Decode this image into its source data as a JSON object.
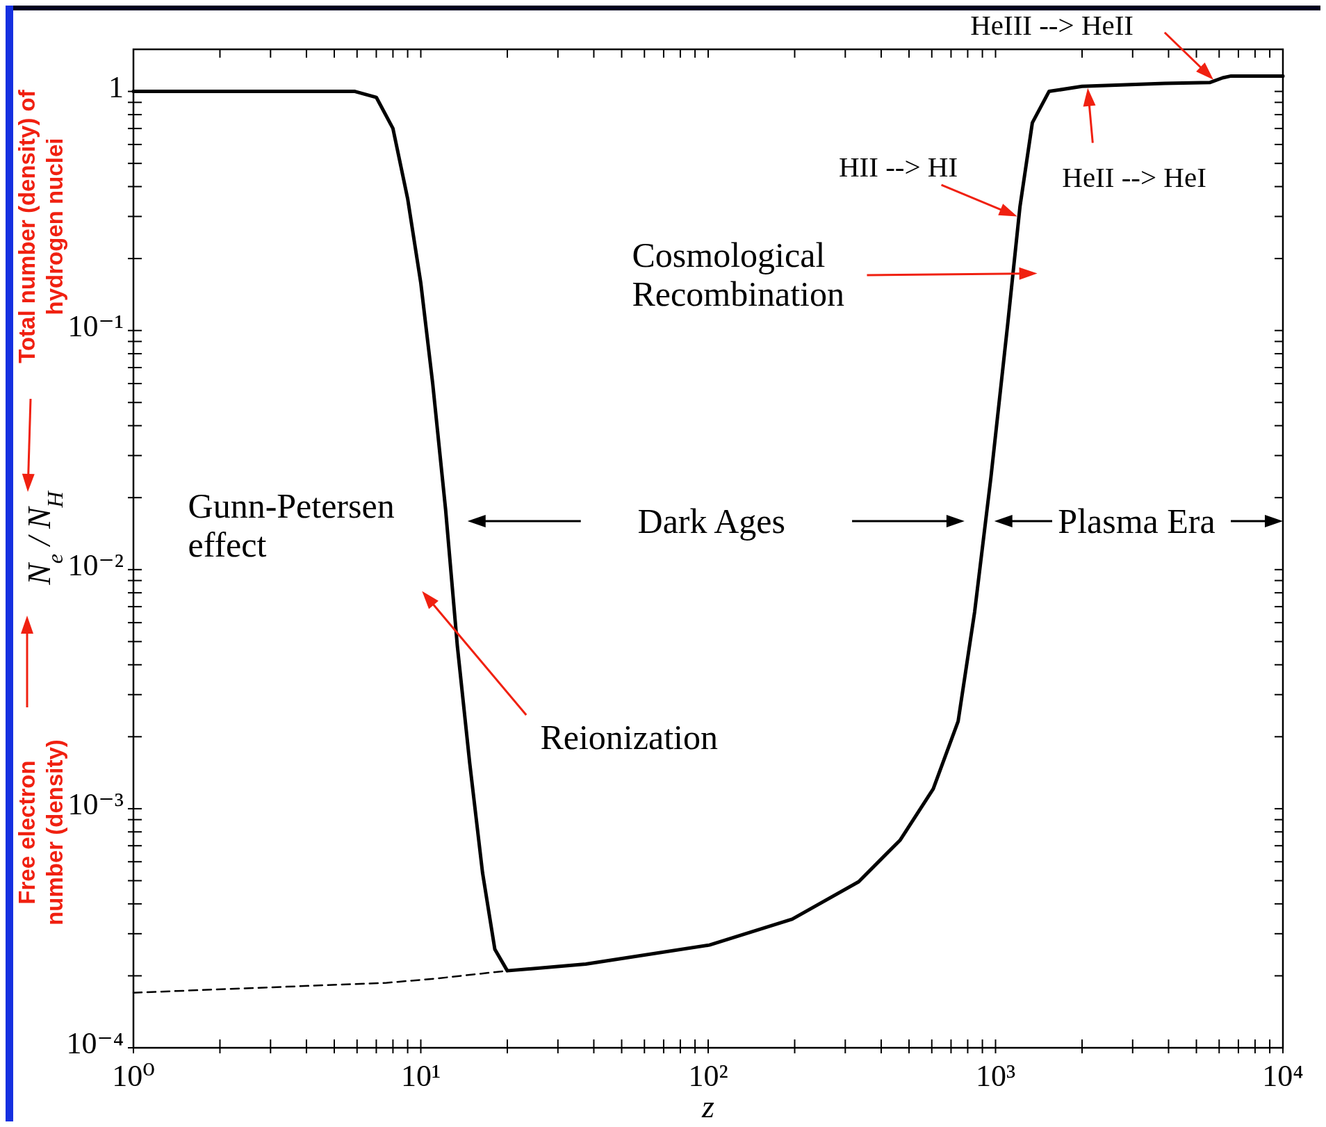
{
  "chart_data": {
    "type": "line",
    "xlabel": "z",
    "ylabel": "N$_{e}$ / N$_{H}$",
    "log": "xy",
    "grid": false,
    "xlim": [
      1,
      10000
    ],
    "ylim": [
      0.0001,
      1.5
    ],
    "xticks": [
      {
        "value": 1,
        "label": "10⁰"
      },
      {
        "value": 2,
        "label": null
      },
      {
        "value": 3,
        "label": null
      },
      {
        "value": 4,
        "label": null
      },
      {
        "value": 5,
        "label": null
      },
      {
        "value": 6,
        "label": null
      },
      {
        "value": 7,
        "label": null
      },
      {
        "value": 8,
        "label": null
      },
      {
        "value": 9,
        "label": null
      },
      {
        "value": 10,
        "label": "10¹"
      },
      {
        "value": 20,
        "label": null
      },
      {
        "value": 30,
        "label": null
      },
      {
        "value": 40,
        "label": null
      },
      {
        "value": 50,
        "label": null
      },
      {
        "value": 60,
        "label": null
      },
      {
        "value": 70,
        "label": null
      },
      {
        "value": 80,
        "label": null
      },
      {
        "value": 90,
        "label": null
      },
      {
        "value": 100,
        "label": "10²"
      },
      {
        "value": 200,
        "label": null
      },
      {
        "value": 300,
        "label": null
      },
      {
        "value": 400,
        "label": null
      },
      {
        "value": 500,
        "label": null
      },
      {
        "value": 600,
        "label": null
      },
      {
        "value": 700,
        "label": null
      },
      {
        "value": 800,
        "label": null
      },
      {
        "value": 900,
        "label": null
      },
      {
        "value": 1000,
        "label": "10³"
      },
      {
        "value": 2000,
        "label": null
      },
      {
        "value": 3000,
        "label": null
      },
      {
        "value": 4000,
        "label": null
      },
      {
        "value": 5000,
        "label": null
      },
      {
        "value": 6000,
        "label": null
      },
      {
        "value": 7000,
        "label": null
      },
      {
        "value": 8000,
        "label": null
      },
      {
        "value": 9000,
        "label": null
      },
      {
        "value": 10000,
        "label": "10⁴"
      }
    ],
    "yticks": [
      {
        "value": 0.0001,
        "label": "10⁻⁴"
      },
      {
        "value": 0.0002,
        "label": null
      },
      {
        "value": 0.0003,
        "label": null
      },
      {
        "value": 0.0004,
        "label": null
      },
      {
        "value": 0.0005,
        "label": null
      },
      {
        "value": 0.0006,
        "label": null
      },
      {
        "value": 0.0007,
        "label": null
      },
      {
        "value": 0.0008,
        "label": null
      },
      {
        "value": 0.0009,
        "label": null
      },
      {
        "value": 0.001,
        "label": "10⁻³"
      },
      {
        "value": 0.002,
        "label": null
      },
      {
        "value": 0.003,
        "label": null
      },
      {
        "value": 0.004,
        "label": null
      },
      {
        "value": 0.005,
        "label": null
      },
      {
        "value": 0.006,
        "label": null
      },
      {
        "value": 0.007,
        "label": null
      },
      {
        "value": 0.008,
        "label": null
      },
      {
        "value": 0.009,
        "label": null
      },
      {
        "value": 0.01,
        "label": "10⁻²"
      },
      {
        "value": 0.02,
        "label": null
      },
      {
        "value": 0.03,
        "label": null
      },
      {
        "value": 0.04,
        "label": null
      },
      {
        "value": 0.05,
        "label": null
      },
      {
        "value": 0.06,
        "label": null
      },
      {
        "value": 0.07,
        "label": null
      },
      {
        "value": 0.08,
        "label": null
      },
      {
        "value": 0.09,
        "label": null
      },
      {
        "value": 0.1,
        "label": "10⁻¹"
      },
      {
        "value": 0.2,
        "label": null
      },
      {
        "value": 0.3,
        "label": null
      },
      {
        "value": 0.4,
        "label": null
      },
      {
        "value": 0.5,
        "label": null
      },
      {
        "value": 0.6,
        "label": null
      },
      {
        "value": 0.7,
        "label": null
      },
      {
        "value": 0.8,
        "label": null
      },
      {
        "value": 0.9,
        "label": null
      },
      {
        "value": 1,
        "label": "1"
      }
    ],
    "series": [
      {
        "type": "line",
        "color": "#000000",
        "line_style": "solid",
        "x": [
          1,
          5.9,
          7,
          8,
          9,
          10,
          11,
          12.2,
          13.4,
          14.8,
          16.4,
          18.1,
          20,
          37.5,
          101,
          196,
          334,
          466,
          607,
          741,
          846,
          964,
          1101,
          1216,
          1343,
          1535,
          2000,
          3880,
          5580,
          6170,
          6600,
          10000
        ],
        "values": [
          1,
          1,
          0.945,
          0.7,
          0.356,
          0.158,
          0.06,
          0.0178,
          0.0048,
          0.00155,
          0.00054,
          0.000258,
          0.00021,
          0.000224,
          0.000269,
          0.000345,
          0.000495,
          0.00074,
          0.00121,
          0.00232,
          0.00667,
          0.0244,
          0.105,
          0.329,
          0.74,
          1,
          1.05,
          1.08,
          1.09,
          1.14,
          1.16,
          1.16
        ]
      },
      {
        "type": "line",
        "color": "#000000",
        "line_style": "dashed",
        "x": [
          1,
          7.6,
          11.4,
          20
        ],
        "values": [
          0.00017,
          0.000187,
          0.000195,
          0.00021
        ]
      }
    ],
    "annotations": [
      "HeIII --> HeII",
      "HeII --> HeI",
      {
        "text": "HII --> HI",
        "x": 1190,
        "y": 0.3
      },
      "Cosmological\nRecombination",
      "Gunn-Petersen\neffect",
      "Reionization",
      "Dark Ages",
      "Plasma Era",
      "Total number (density)  of\nhydrogen nuclei",
      "Free electron\nnumber (density)"
    ]
  }
}
